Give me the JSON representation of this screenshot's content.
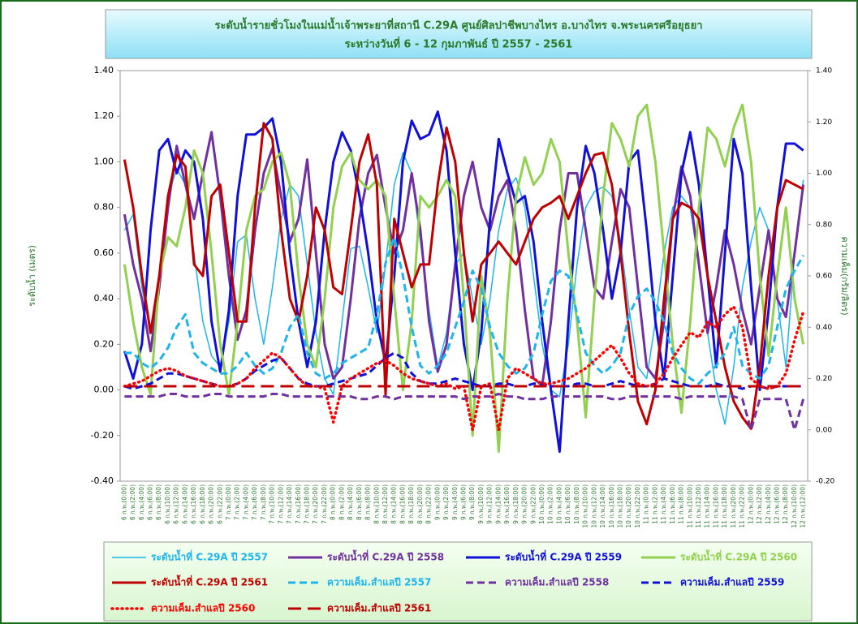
{
  "chart_data": {
    "type": "line",
    "title": "ระดับน้ำรายชั่วโมงในแม่น้ำเจ้าพระยาที่สถานี C.29A ศูนย์ศิลปาชีพบางไทร อ.บางไทร จ.พระนครศรีอยุธยา",
    "subtitle": "ระหว่างวันที่  6 - 12 กุมภาพันธ์ ปี 2557 - 2561",
    "ylabel": "ระดับน้ำ (เมตร)",
    "y2label": "ความเค็ม(กรัม/ลิตร)",
    "categories": [
      "6 ก.พ.(0:00)",
      "6 ก.พ.(2:00)",
      "6 ก.พ.(4:00)",
      "6 ก.พ.(6:00)",
      "6 ก.พ.(8:00)",
      "6 ก.พ.(10:00)",
      "6 ก.พ.(12:00)",
      "6 ก.พ.(14:00)",
      "6 ก.พ.(16:00)",
      "6 ก.พ.(18:00)",
      "6 ก.พ.(20:00)",
      "6 ก.พ.(22:00)",
      "7 ก.พ.(0:00)",
      "7 ก.พ.(2:00)",
      "7 ก.พ.(4:00)",
      "7 ก.พ.(6:00)",
      "7 ก.พ.(8:00)",
      "7 ก.พ.(10:00)",
      "7 ก.พ.(12:00)",
      "7 ก.พ.(14:00)",
      "7 ก.พ.(16:00)",
      "7 ก.พ.(18:00)",
      "7 ก.พ.(20:00)",
      "7 ก.พ.(22:00)",
      "8 ก.พ.(0:00)",
      "8 ก.พ.(2:00)",
      "8 ก.พ.(4:00)",
      "8 ก.พ.(6:00)",
      "8 ก.พ.(8:00)",
      "8 ก.พ.(10:00)",
      "8 ก.พ.(12:00)",
      "8 ก.พ.(14:00)",
      "8 ก.พ.(16:00)",
      "8 ก.พ.(18:00)",
      "8 ก.พ.(20:00)",
      "8 ก.พ.(22:00)",
      "9 ก.พ.(0:00)",
      "9 ก.พ.(2:00)",
      "9 ก.พ.(4:00)",
      "9 ก.พ.(6:00)",
      "9 ก.พ.(8:00)",
      "9 ก.พ.(10:00)",
      "9 ก.พ.(12:00)",
      "9 ก.พ.(14:00)",
      "9 ก.พ.(16:00)",
      "9 ก.พ.(18:00)",
      "9 ก.พ.(20:00)",
      "9 ก.พ.(22:00)",
      "10 ก.พ.(0:00)",
      "10 ก.พ.(2:00)",
      "10 ก.พ.(4:00)",
      "10 ก.พ.(6:00)",
      "10 ก.พ.(8:00)",
      "10 ก.พ.(10:00)",
      "10 ก.พ.(12:00)",
      "10 ก.พ.(14:00)",
      "10 ก.พ.(16:00)",
      "10 ก.พ.(18:00)",
      "10 ก.พ.(20:00)",
      "10 ก.พ.(22:00)",
      "11 ก.พ.(0:00)",
      "11 ก.พ.(2:00)",
      "11 ก.พ.(4:00)",
      "11 ก.พ.(6:00)",
      "11 ก.พ.(8:00)",
      "11 ก.พ.(10:00)",
      "11 ก.พ.(12:00)",
      "11 ก.พ.(14:00)",
      "11 ก.พ.(16:00)",
      "11 ก.พ.(18:00)",
      "11 ก.พ.(20:00)",
      "11 ก.พ.(22:00)",
      "12 ก.พ.(0:00)",
      "12 ก.พ.(2:00)",
      "12 ก.พ.(4:00)",
      "12 ก.พ.(6:00)",
      "12 ก.พ.(8:00)",
      "12 ก.พ.(10:00)",
      "12 ก.พ.(12:00)"
    ],
    "series": [
      {
        "name": "ระดับน้ำที่ C.29A ปี 2557",
        "color": "#1fb4ec",
        "style": "solid",
        "width": 1.5,
        "values": [
          0.7,
          0.77,
          0.45,
          0.25,
          0.5,
          0.85,
          0.97,
          0.9,
          0.6,
          0.3,
          0.15,
          0.1,
          0.3,
          0.65,
          0.68,
          0.4,
          0.2,
          0.45,
          0.75,
          0.9,
          0.85,
          0.55,
          0.25,
          0.05,
          -0.02,
          0.3,
          0.62,
          0.63,
          0.45,
          0.25,
          0.55,
          0.9,
          1.04,
          0.95,
          0.65,
          0.35,
          0.1,
          0.25,
          0.55,
          0.6,
          0.4,
          0.2,
          0.4,
          0.7,
          0.88,
          0.93,
          0.8,
          0.5,
          0.2,
          0.0,
          -0.03,
          0.2,
          0.55,
          0.8,
          0.87,
          0.89,
          0.85,
          0.65,
          0.35,
          0.1,
          0.05,
          0.3,
          0.6,
          0.8,
          0.85,
          0.8,
          0.55,
          0.25,
          0.0,
          -0.15,
          0.1,
          0.45,
          0.65,
          0.8,
          0.7,
          0.4,
          0.1,
          0.6,
          0.92
        ]
      },
      {
        "name": "ระดับน้ำที่ C.29A ปี 2558",
        "color": "#7030a0",
        "style": "solid",
        "width": 3,
        "values": [
          0.77,
          0.55,
          0.4,
          0.17,
          0.45,
          0.8,
          1.07,
          0.9,
          0.75,
          0.95,
          1.13,
          0.85,
          0.5,
          0.22,
          0.35,
          0.7,
          0.95,
          1.06,
          0.85,
          0.65,
          0.75,
          1.01,
          0.6,
          0.2,
          0.05,
          0.1,
          0.4,
          0.75,
          0.95,
          1.03,
          0.8,
          0.6,
          0.7,
          0.95,
          0.7,
          0.3,
          0.08,
          0.2,
          0.55,
          0.85,
          1.0,
          0.8,
          0.7,
          0.85,
          0.92,
          0.7,
          0.35,
          0.05,
          0.02,
          0.3,
          0.7,
          0.95,
          0.95,
          0.7,
          0.45,
          0.4,
          0.65,
          0.88,
          0.8,
          0.45,
          0.1,
          0.05,
          0.3,
          0.75,
          0.98,
          0.85,
          0.55,
          0.25,
          0.45,
          0.7,
          0.55,
          0.35,
          0.2,
          0.45,
          0.7,
          0.4,
          0.32,
          0.6,
          0.9
        ]
      },
      {
        "name": "ระดับน้ำที่ C.29A ปี 2559",
        "color": "#1010d8",
        "style": "solid",
        "width": 3,
        "values": [
          0.17,
          0.05,
          0.2,
          0.7,
          1.05,
          1.1,
          0.95,
          1.05,
          1.0,
          0.75,
          0.3,
          0.08,
          0.35,
          0.85,
          1.12,
          1.12,
          1.15,
          1.19,
          1.0,
          0.6,
          0.3,
          0.1,
          0.3,
          0.7,
          1.0,
          1.13,
          1.05,
          0.85,
          0.6,
          0.3,
          0.12,
          0.5,
          1.0,
          1.18,
          1.1,
          1.12,
          1.22,
          1.05,
          0.6,
          0.2,
          0.0,
          0.25,
          0.75,
          1.1,
          0.95,
          0.82,
          0.85,
          0.65,
          0.3,
          0.0,
          -0.27,
          0.3,
          0.8,
          1.07,
          0.95,
          0.7,
          0.4,
          0.6,
          1.0,
          1.05,
          0.7,
          0.3,
          0.05,
          0.5,
          0.95,
          1.13,
          0.9,
          0.5,
          0.1,
          0.6,
          1.1,
          0.95,
          0.45,
          0.0,
          0.35,
          0.8,
          1.08,
          1.08,
          1.05
        ]
      },
      {
        "name": "ระดับน้ำที่ C.29A ปี 2560",
        "color": "#92d050",
        "style": "solid",
        "width": 3,
        "values": [
          0.55,
          0.3,
          0.1,
          -0.02,
          0.5,
          0.67,
          0.63,
          0.8,
          1.05,
          0.95,
          0.6,
          0.2,
          -0.02,
          0.3,
          0.7,
          0.85,
          0.88,
          1.0,
          1.04,
          0.9,
          0.5,
          0.2,
          0.1,
          0.4,
          0.8,
          0.98,
          1.04,
          0.92,
          0.88,
          0.92,
          0.85,
          0.4,
          0.0,
          0.3,
          0.85,
          0.8,
          0.85,
          0.92,
          0.85,
          0.4,
          -0.2,
          0.5,
          0.25,
          -0.27,
          0.4,
          0.85,
          1.02,
          0.9,
          0.95,
          1.1,
          1.0,
          0.6,
          0.3,
          -0.12,
          0.4,
          0.85,
          1.17,
          1.1,
          0.98,
          1.2,
          1.25,
          1.0,
          0.6,
          0.2,
          -0.1,
          0.3,
          0.8,
          1.15,
          1.1,
          0.98,
          1.15,
          1.25,
          1.0,
          0.5,
          0.15,
          0.5,
          0.8,
          0.4,
          0.2
        ]
      },
      {
        "name": "ระดับน้ำที่ C.29A ปี 2561",
        "color": "#c00000",
        "style": "solid",
        "width": 3,
        "values": [
          1.01,
          0.8,
          0.5,
          0.25,
          0.5,
          0.85,
          1.03,
          0.98,
          0.55,
          0.5,
          0.85,
          0.9,
          0.6,
          0.3,
          0.3,
          0.8,
          1.17,
          1.1,
          0.7,
          0.4,
          0.3,
          0.5,
          0.8,
          0.7,
          0.45,
          0.42,
          0.7,
          1.0,
          1.12,
          0.9,
          -0.02,
          0.75,
          0.6,
          0.45,
          0.55,
          0.55,
          0.9,
          1.15,
          1.0,
          0.6,
          0.3,
          0.55,
          0.6,
          0.65,
          0.6,
          0.55,
          0.65,
          0.75,
          0.8,
          0.82,
          0.85,
          0.75,
          0.85,
          0.95,
          1.03,
          1.04,
          0.9,
          0.6,
          0.25,
          -0.05,
          -0.15,
          0.0,
          0.4,
          0.75,
          0.82,
          0.8,
          0.75,
          0.5,
          0.3,
          0.1,
          -0.05,
          -0.12,
          -0.17,
          0.1,
          0.5,
          0.8,
          0.92,
          0.9,
          0.88
        ]
      },
      {
        "name": "ความเค็ม.สำแลปี 2557",
        "color": "#1fb4ec",
        "style": "dashed",
        "width": 3,
        "axis": "y2",
        "values": [
          0.3,
          0.3,
          0.26,
          0.24,
          0.27,
          0.32,
          0.4,
          0.45,
          0.3,
          0.26,
          0.24,
          0.22,
          0.22,
          0.25,
          0.3,
          0.25,
          0.22,
          0.24,
          0.3,
          0.4,
          0.45,
          0.3,
          0.22,
          0.2,
          0.22,
          0.26,
          0.28,
          0.3,
          0.32,
          0.45,
          0.65,
          0.75,
          0.6,
          0.4,
          0.25,
          0.22,
          0.25,
          0.3,
          0.4,
          0.5,
          0.62,
          0.55,
          0.4,
          0.3,
          0.25,
          0.22,
          0.24,
          0.3,
          0.45,
          0.58,
          0.62,
          0.6,
          0.45,
          0.3,
          0.25,
          0.22,
          0.25,
          0.3,
          0.45,
          0.52,
          0.55,
          0.5,
          0.42,
          0.3,
          0.24,
          0.2,
          0.18,
          0.22,
          0.25,
          0.3,
          0.4,
          0.25,
          0.22,
          0.2,
          0.25,
          0.4,
          0.55,
          0.62,
          0.68
        ]
      },
      {
        "name": "ความเค็ม.สำแลปี 2558",
        "color": "#7030a0",
        "style": "dashed",
        "width": 3,
        "axis": "y2",
        "values": [
          0.13,
          0.13,
          0.13,
          0.13,
          0.13,
          0.14,
          0.14,
          0.13,
          0.13,
          0.13,
          0.14,
          0.14,
          0.13,
          0.13,
          0.13,
          0.13,
          0.13,
          0.14,
          0.14,
          0.13,
          0.13,
          0.13,
          0.13,
          0.13,
          0.13,
          0.13,
          0.13,
          0.12,
          0.12,
          0.13,
          0.13,
          0.12,
          0.13,
          0.13,
          0.13,
          0.13,
          0.13,
          0.13,
          0.13,
          0.12,
          0.13,
          0.13,
          0.13,
          0.14,
          0.13,
          0.13,
          0.12,
          0.12,
          0.12,
          0.13,
          0.13,
          0.13,
          0.13,
          0.13,
          0.13,
          0.13,
          0.12,
          0.12,
          0.13,
          0.13,
          0.13,
          0.13,
          0.13,
          0.13,
          0.12,
          0.13,
          0.13,
          0.13,
          0.13,
          0.13,
          0.13,
          0.12,
          0.0,
          0.12,
          0.12,
          0.12,
          0.12,
          0.0,
          0.12
        ]
      },
      {
        "name": "ความเค็ม.สำแลปี 2559",
        "color": "#1010d8",
        "style": "dashed",
        "width": 3,
        "axis": "y2",
        "values": [
          0.17,
          0.16,
          0.17,
          0.18,
          0.2,
          0.22,
          0.22,
          0.21,
          0.2,
          0.19,
          0.18,
          0.17,
          0.17,
          0.18,
          0.2,
          0.23,
          0.25,
          0.27,
          0.28,
          0.24,
          0.2,
          0.18,
          0.17,
          0.17,
          0.18,
          0.19,
          0.2,
          0.21,
          0.22,
          0.25,
          0.28,
          0.3,
          0.28,
          0.22,
          0.19,
          0.18,
          0.18,
          0.19,
          0.2,
          0.19,
          0.18,
          0.17,
          0.17,
          0.18,
          0.18,
          0.17,
          0.17,
          0.18,
          0.18,
          0.17,
          0.17,
          0.17,
          0.18,
          0.18,
          0.17,
          0.17,
          0.18,
          0.19,
          0.18,
          0.17,
          0.17,
          0.18,
          0.2,
          0.19,
          0.18,
          0.17,
          0.17,
          0.17,
          0.18,
          0.17,
          0.17,
          0.16,
          0.17,
          0.17,
          0.16,
          0.17,
          0.17,
          0.17,
          0.17
        ]
      },
      {
        "name": "ความเค็ม.สำแลปี 2560",
        "color": "#ff0000",
        "style": "dotted",
        "width": 3.5,
        "axis": "y2",
        "values": [
          0.17,
          0.18,
          0.19,
          0.21,
          0.23,
          0.24,
          0.23,
          0.21,
          0.2,
          0.19,
          0.18,
          0.17,
          0.17,
          0.18,
          0.2,
          0.24,
          0.27,
          0.3,
          0.28,
          0.24,
          0.2,
          0.17,
          0.17,
          0.16,
          0.03,
          0.17,
          0.2,
          0.22,
          0.24,
          0.26,
          0.27,
          0.25,
          0.22,
          0.2,
          0.19,
          0.18,
          0.17,
          0.18,
          0.16,
          0.17,
          0.0,
          0.17,
          0.18,
          0.0,
          0.2,
          0.24,
          0.22,
          0.2,
          0.18,
          0.18,
          0.19,
          0.2,
          0.22,
          0.24,
          0.27,
          0.3,
          0.33,
          0.28,
          0.22,
          0.18,
          0.17,
          0.18,
          0.22,
          0.28,
          0.33,
          0.38,
          0.36,
          0.42,
          0.4,
          0.45,
          0.48,
          0.4,
          0.2,
          0.17,
          0.16,
          0.17,
          0.22,
          0.35,
          0.46
        ]
      },
      {
        "name": "ความเค็ม.สำแลปี 2561",
        "color": "#c00000",
        "style": "dashed-long",
        "width": 3,
        "axis": "y2",
        "values": [
          0.17,
          0.17,
          0.17,
          0.17,
          0.17,
          0.17,
          0.17,
          0.17,
          0.17,
          0.17,
          0.17,
          0.17,
          0.17,
          0.17,
          0.17,
          0.17,
          0.17,
          0.17,
          0.17,
          0.17,
          0.17,
          0.17,
          0.17,
          0.17,
          0.17,
          0.17,
          0.17,
          0.17,
          0.17,
          0.17,
          0.17,
          0.17,
          0.17,
          0.17,
          0.17,
          0.17,
          0.17,
          0.17,
          0.17,
          0.17,
          0.17,
          0.17,
          0.17,
          0.17,
          0.17,
          0.17,
          0.17,
          0.17,
          0.17,
          0.17,
          0.17,
          0.17,
          0.17,
          0.17,
          0.17,
          0.17,
          0.17,
          0.17,
          0.17,
          0.17,
          0.17,
          0.17,
          0.17,
          0.17,
          0.17,
          0.17,
          0.17,
          0.17,
          0.17,
          0.17,
          0.17,
          0.17,
          0.17,
          0.17,
          0.17,
          0.17,
          0.17,
          0.17,
          0.17
        ]
      }
    ],
    "ylim": [
      -0.4,
      1.4
    ],
    "yticks": [
      {
        "value": -0.4,
        "label": "-0.40"
      },
      {
        "value": -0.2,
        "label": "-0.20"
      },
      {
        "value": 0,
        "label": "0.00"
      },
      {
        "value": 0.2,
        "label": "0.20"
      },
      {
        "value": 0.4,
        "label": "0.40"
      },
      {
        "value": 0.6,
        "label": "0.60"
      },
      {
        "value": 0.8,
        "label": "0.80"
      },
      {
        "value": 1,
        "label": "1.00"
      },
      {
        "value": 1.2,
        "label": "1.20"
      },
      {
        "value": 1.4,
        "label": "1.40"
      }
    ],
    "y2lim": [
      -0.2,
      1.4
    ],
    "y2ticks": [
      {
        "value": -0.2,
        "label": "-0.20"
      },
      {
        "value": 0,
        "label": "0.00"
      },
      {
        "value": 0.2,
        "label": "0.20"
      },
      {
        "value": 0.4,
        "label": "0.40"
      },
      {
        "value": 0.6,
        "label": "0.60"
      },
      {
        "value": 0.8,
        "label": "0.80"
      },
      {
        "value": 1,
        "label": "1.00"
      },
      {
        "value": 1.2,
        "label": "1.20"
      },
      {
        "value": 1.4,
        "label": "1.40"
      }
    ],
    "grid": false,
    "legend": "bottom"
  }
}
